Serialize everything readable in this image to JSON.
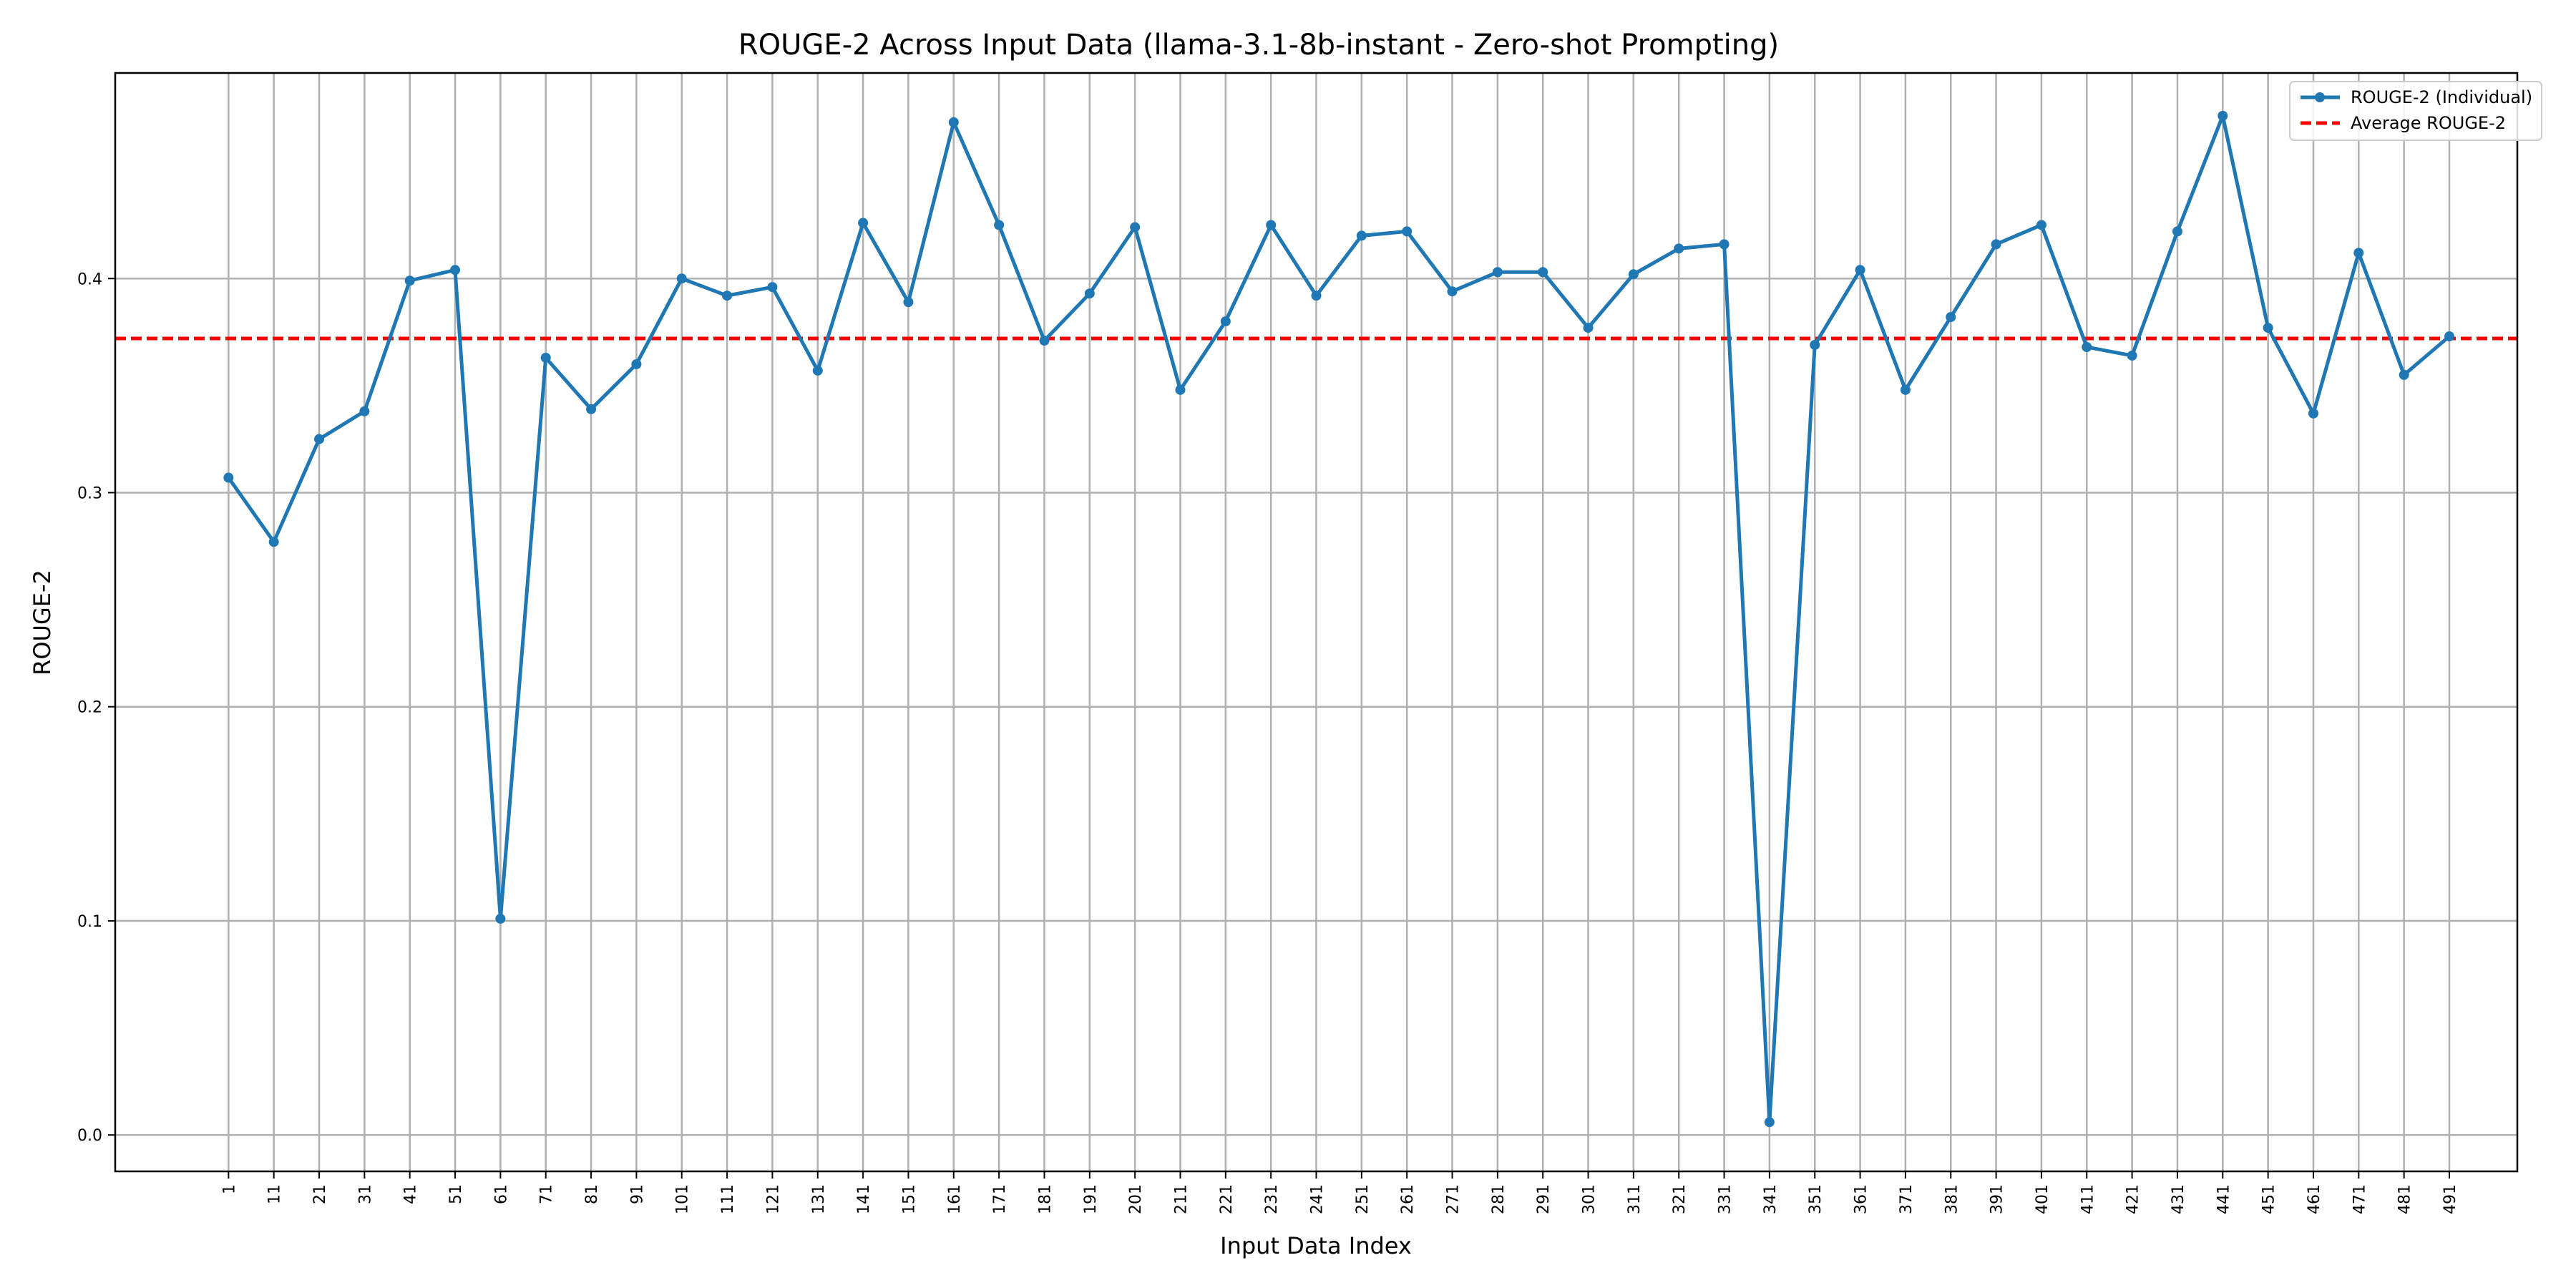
{
  "chart_data": {
    "type": "line",
    "title": "ROUGE-2 Across Input Data (llama-3.1-8b-instant - Zero-shot Prompting)",
    "xlabel": "Input Data Index",
    "ylabel": "ROUGE-2",
    "x": [
      1,
      11,
      21,
      31,
      41,
      51,
      61,
      71,
      81,
      91,
      101,
      111,
      121,
      131,
      141,
      151,
      161,
      171,
      181,
      191,
      201,
      211,
      221,
      231,
      241,
      251,
      261,
      271,
      281,
      291,
      301,
      311,
      321,
      331,
      341,
      351,
      361,
      371,
      381,
      391,
      401,
      411,
      421,
      431,
      441,
      451,
      461,
      471,
      481,
      491
    ],
    "xlim": [
      -24,
      506
    ],
    "ylim": [
      -0.017,
      0.496
    ],
    "yticks": [
      0.0,
      0.1,
      0.2,
      0.3,
      0.4
    ],
    "grid": true,
    "legend_position": "top-right",
    "series": [
      {
        "name": "ROUGE-2 (Individual)",
        "color": "#1f77b4",
        "style": "solid-with-markers",
        "values": [
          0.307,
          0.277,
          0.325,
          0.338,
          0.399,
          0.404,
          0.101,
          0.363,
          0.339,
          0.36,
          0.4,
          0.392,
          0.396,
          0.357,
          0.426,
          0.389,
          0.473,
          0.425,
          0.371,
          0.393,
          0.424,
          0.348,
          0.38,
          0.425,
          0.392,
          0.42,
          0.422,
          0.394,
          0.403,
          0.403,
          0.377,
          0.402,
          0.414,
          0.416,
          0.006,
          0.369,
          0.404,
          0.348,
          0.382,
          0.416,
          0.425,
          0.368,
          0.364,
          0.422,
          0.476,
          0.377,
          0.337,
          0.412,
          0.355,
          0.373
        ]
      },
      {
        "name": "Average ROUGE-2",
        "color": "#ff0000",
        "style": "dashed",
        "value": 0.372
      }
    ]
  }
}
